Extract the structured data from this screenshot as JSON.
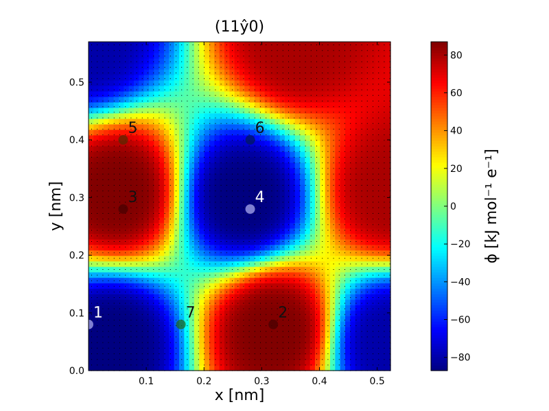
{
  "chart_data": {
    "type": "heatmap",
    "title": "(11ŷ0)",
    "xlabel": "x [nm]",
    "ylabel": "y [nm]",
    "xlim": [
      0.0,
      0.523
    ],
    "ylim": [
      0.0,
      0.57
    ],
    "x_ticks": [
      {
        "value": 0.1,
        "label": "0.1"
      },
      {
        "value": 0.2,
        "label": "0.2"
      },
      {
        "value": 0.3,
        "label": "0.3"
      },
      {
        "value": 0.4,
        "label": "0.4"
      },
      {
        "value": 0.5,
        "label": "0.5"
      }
    ],
    "y_ticks": [
      {
        "value": 0.0,
        "label": "0.0"
      },
      {
        "value": 0.1,
        "label": "0.1"
      },
      {
        "value": 0.2,
        "label": "0.2"
      },
      {
        "value": 0.3,
        "label": "0.3"
      },
      {
        "value": 0.4,
        "label": "0.4"
      },
      {
        "value": 0.5,
        "label": "0.5"
      }
    ],
    "colormap": "jet",
    "colorbar": {
      "label": "ϕ [kJ mol⁻¹ e⁻¹]",
      "range": [
        -87,
        87
      ],
      "ticks": [
        {
          "value": 80,
          "label": "80"
        },
        {
          "value": 60,
          "label": "60"
        },
        {
          "value": 40,
          "label": "40"
        },
        {
          "value": 20,
          "label": "20"
        },
        {
          "value": 0,
          "label": "0"
        },
        {
          "value": -20,
          "label": "−20"
        },
        {
          "value": -40,
          "label": "−40"
        },
        {
          "value": -60,
          "label": "−60"
        },
        {
          "value": -80,
          "label": "−80"
        }
      ]
    },
    "field_extrema": [
      {
        "x": 0.05,
        "y": 0.31,
        "value": 87
      },
      {
        "x": 0.32,
        "y": 0.07,
        "value": 87
      },
      {
        "x": 0.36,
        "y": 0.57,
        "value": 80
      },
      {
        "x": 0.27,
        "y": 0.3,
        "value": -87
      },
      {
        "x": 0.04,
        "y": 0.05,
        "value": -87
      },
      {
        "x": 0.523,
        "y": 0.05,
        "value": -80
      },
      {
        "x": 0.523,
        "y": 0.31,
        "value": 80
      },
      {
        "x": 0.0,
        "y": 0.57,
        "value": -80
      }
    ],
    "points": [
      {
        "label": "1",
        "x": 0.0,
        "y": 0.08,
        "color": "#aaaaee"
      },
      {
        "label": "2",
        "x": 0.32,
        "y": 0.08,
        "color": "#4a0000"
      },
      {
        "label": "3",
        "x": 0.06,
        "y": 0.28,
        "color": "#4a0000"
      },
      {
        "label": "4",
        "x": 0.28,
        "y": 0.28,
        "color": "#aaaaee"
      },
      {
        "label": "5",
        "x": 0.06,
        "y": 0.4,
        "color": "#5a2a00"
      },
      {
        "label": "6",
        "x": 0.28,
        "y": 0.4,
        "color": "#001a5a"
      },
      {
        "label": "7",
        "x": 0.16,
        "y": 0.08,
        "color": "#1f6a1f"
      }
    ],
    "grid": false,
    "legend": "none"
  }
}
